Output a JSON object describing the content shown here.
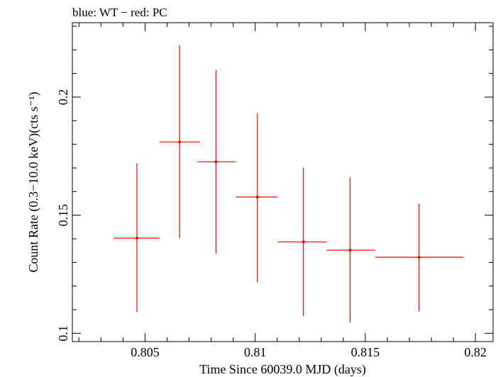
{
  "chart_data": {
    "type": "scatter",
    "title": "blue: WT − red: PC",
    "xlabel": "Time Since 60039.0 MJD (days)",
    "ylabel": "Count Rate (0.3−10.0 keV)(cts s⁻¹)",
    "xlim": [
      0.8017,
      0.8208
    ],
    "ylim": [
      0.0965,
      0.2315
    ],
    "x_ticks": [
      {
        "value": 0.805,
        "label": "0.805"
      },
      {
        "value": 0.81,
        "label": "0.81"
      },
      {
        "value": 0.815,
        "label": "0.815"
      },
      {
        "value": 0.82,
        "label": "0.82"
      }
    ],
    "x_minor_ticks": [
      0.802,
      0.803,
      0.804,
      0.806,
      0.807,
      0.808,
      0.809,
      0.811,
      0.812,
      0.813,
      0.814,
      0.816,
      0.817,
      0.818,
      0.819
    ],
    "y_ticks": [
      {
        "value": 0.1,
        "label": "0.1"
      },
      {
        "value": 0.15,
        "label": "0.15"
      },
      {
        "value": 0.2,
        "label": "0.2"
      }
    ],
    "y_minor_ticks": [
      0.11,
      0.12,
      0.13,
      0.14,
      0.16,
      0.17,
      0.18,
      0.19,
      0.21,
      0.22,
      0.23
    ],
    "grid": false,
    "series": [
      {
        "color": "#ff0000",
        "points": [
          {
            "x": 0.80463,
            "xlo": 0.80357,
            "xhi": 0.80566,
            "y": 0.1403,
            "ylo": 0.1089,
            "yhi": 0.172
          },
          {
            "x": 0.80657,
            "xlo": 0.80566,
            "xhi": 0.8075,
            "y": 0.181,
            "ylo": 0.1403,
            "yhi": 0.222
          },
          {
            "x": 0.80822,
            "xlo": 0.80738,
            "xhi": 0.80912,
            "y": 0.1726,
            "ylo": 0.1336,
            "yhi": 0.2114
          },
          {
            "x": 0.8101,
            "xlo": 0.80912,
            "xhi": 0.81102,
            "y": 0.1577,
            "ylo": 0.1216,
            "yhi": 0.1932
          },
          {
            "x": 0.81219,
            "xlo": 0.81102,
            "xhi": 0.81325,
            "y": 0.1387,
            "ylo": 0.1074,
            "yhi": 0.1701
          },
          {
            "x": 0.81431,
            "xlo": 0.81325,
            "xhi": 0.81545,
            "y": 0.1352,
            "ylo": 0.1046,
            "yhi": 0.166
          },
          {
            "x": 0.81744,
            "xlo": 0.81545,
            "xhi": 0.81946,
            "y": 0.1322,
            "ylo": 0.1093,
            "yhi": 0.1549
          }
        ]
      }
    ]
  }
}
